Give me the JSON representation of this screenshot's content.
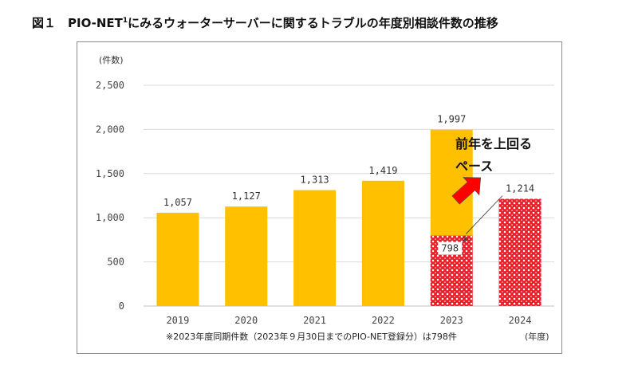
{
  "figure": {
    "title_prefix": "図１　PIO-NET",
    "title_sup": "1",
    "title_suffix": "にみるウォーターサーバーに関するトラブルの年度別相談件数の推移"
  },
  "chart_data": {
    "type": "bar",
    "categories": [
      "2019",
      "2020",
      "2021",
      "2022",
      "2023",
      "2024"
    ],
    "values": [
      1057,
      1127,
      1313,
      1419,
      1997,
      1214
    ],
    "value_labels": [
      "1,057",
      "1,127",
      "1,313",
      "1,419",
      "1,997",
      "1,214"
    ],
    "ylabel": "(件数)",
    "xlabel": "(年度)",
    "ylim": [
      0,
      2500
    ],
    "yticks": [
      0,
      500,
      1000,
      1500,
      2000,
      2500
    ],
    "ytick_labels": [
      "0",
      "500",
      "1,000",
      "1,500",
      "2,000",
      "2,500"
    ],
    "grid": true,
    "same_period": {
      "year": "2023",
      "value": 798,
      "label": "798",
      "mark": "※"
    },
    "annotation_line1": "前年を上回る",
    "annotation_line2": "ペース",
    "note": "※2023年度同期件数（2023年９月30日までのPIO-NET登録分）は798件",
    "colors": {
      "bar": "#FFC000",
      "pattern": "#E8202A",
      "grid": "#D9D9D9",
      "arrow": "#FF0000"
    }
  }
}
